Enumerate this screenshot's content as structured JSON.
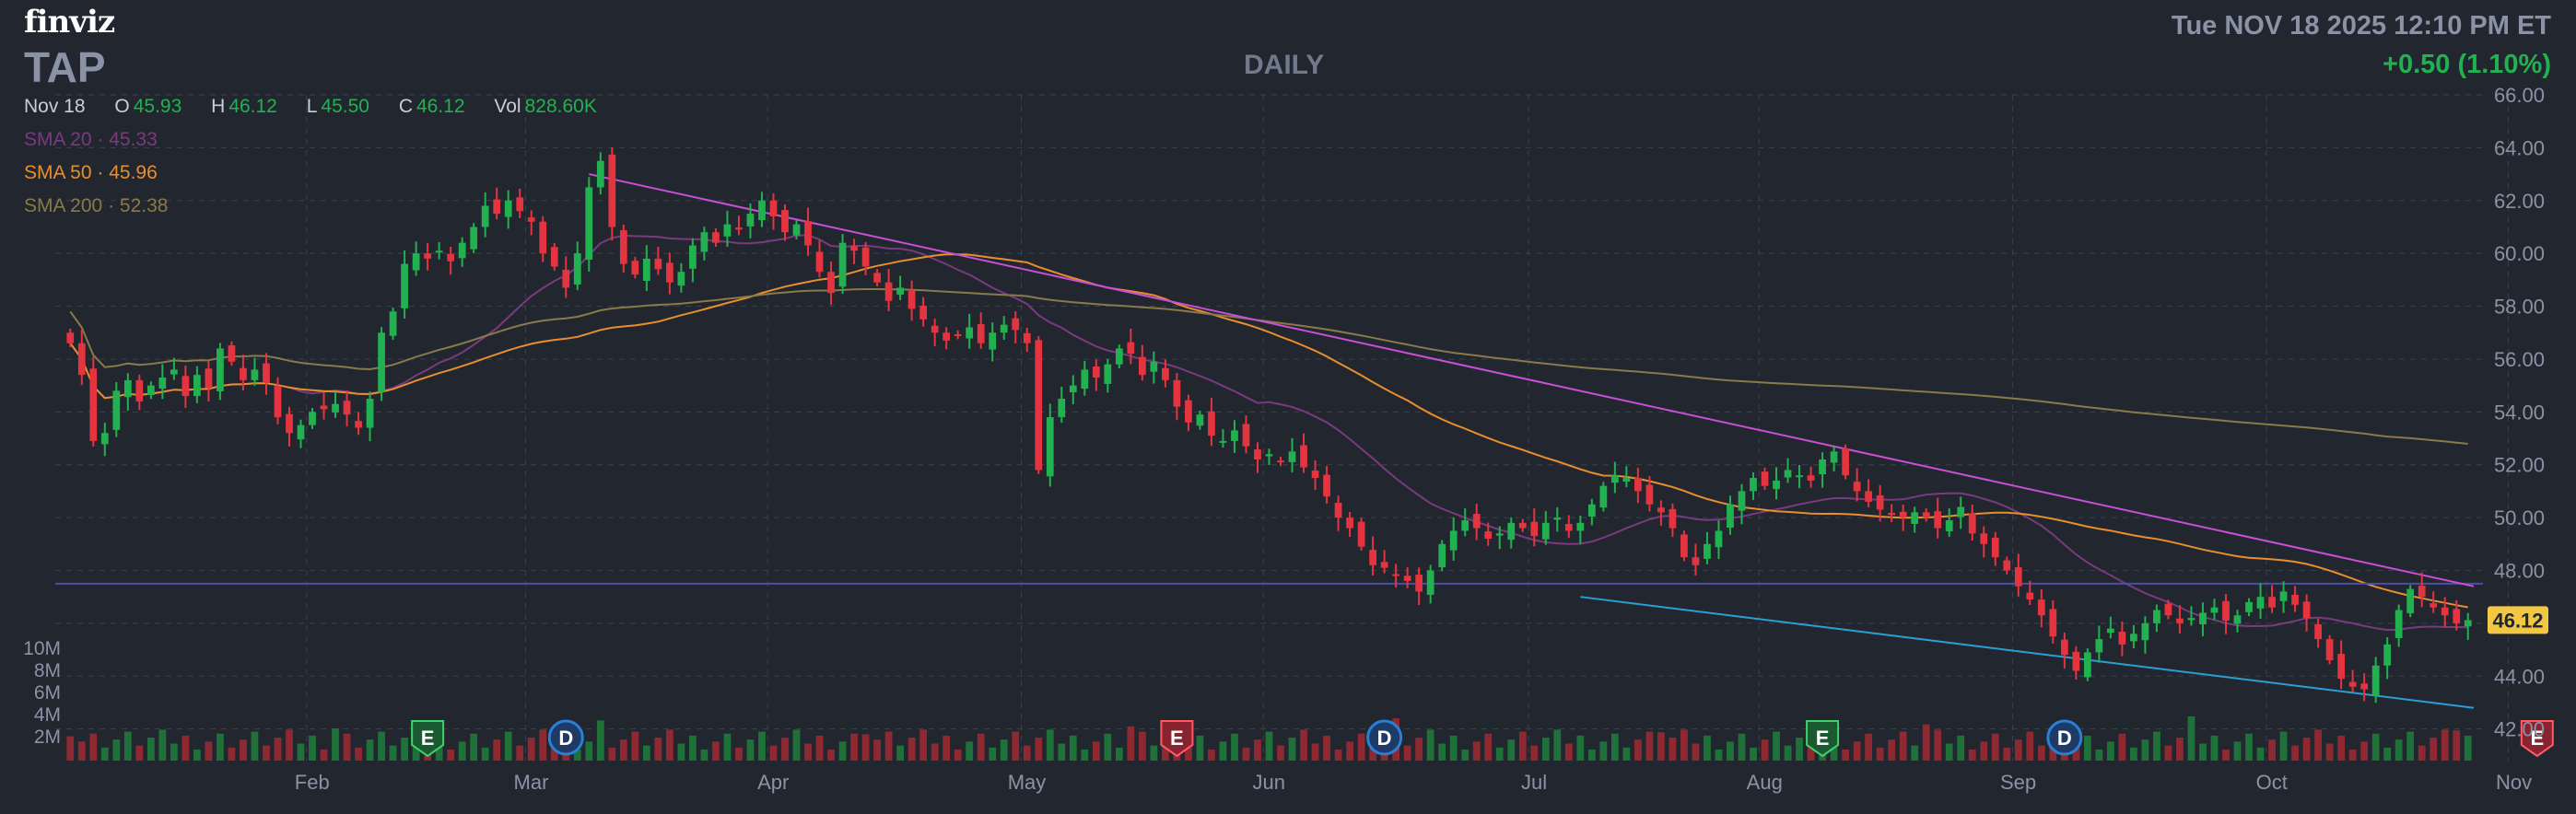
{
  "header": {
    "logo": "finviz",
    "ticker": "TAP",
    "timeframe": "DAILY",
    "datetime": "Tue NOV 18 2025 12:10 PM ET",
    "change": "+0.50 (1.10%)"
  },
  "ohlc": {
    "date": "Nov 18",
    "open_label": "O",
    "open": "45.93",
    "high_label": "H",
    "high": "46.12",
    "low_label": "L",
    "low": "45.50",
    "close_label": "C",
    "close": "46.12",
    "vol_label": "Vol",
    "volume": "828.60K"
  },
  "indicators": [
    {
      "label": "SMA 20",
      "value": "45.33",
      "color": "#7a3a7e"
    },
    {
      "label": "SMA 50",
      "value": "45.96",
      "color": "#e88e2e"
    },
    {
      "label": "SMA 200",
      "value": "52.38",
      "color": "#8a7a4a"
    }
  ],
  "colors": {
    "background": "#22262f",
    "up": "#22b150",
    "down": "#e3343f",
    "grid": "#3a404c",
    "axis_text": "#8a93a6",
    "trendline_upper": "#c94fd6",
    "trendline_lower": "#2a9fd6",
    "hline": "#4a4fa8",
    "price_tag": "#f2c744"
  },
  "chart_data": {
    "type": "candlestick",
    "ylim": [
      41.5,
      66
    ],
    "y_ticks": [
      "66.00",
      "64.00",
      "62.00",
      "60.00",
      "58.00",
      "56.00",
      "54.00",
      "52.00",
      "50.00",
      "48.00",
      "46.00",
      "44.00",
      "42.00"
    ],
    "x_months": [
      "Feb",
      "Mar",
      "Apr",
      "May",
      "Jun",
      "Jul",
      "Aug",
      "Sep",
      "Oct",
      "Nov"
    ],
    "volume_ticks": [
      "10M",
      "8M",
      "6M",
      "4M",
      "2M"
    ],
    "last_price_tag": "46.12",
    "horizontal_line": 47.5,
    "trendlines": [
      {
        "from": [
          "Mar 10",
          63.0
        ],
        "to": [
          "Nov 18",
          47.4
        ],
        "color": "#c94fd6"
      },
      {
        "from": [
          "Jun 27",
          47.0
        ],
        "to": [
          "Nov 18",
          42.8
        ],
        "color": "#2a9fd6"
      }
    ],
    "events": [
      {
        "label": "E",
        "date": "Feb 13",
        "color": "#22b150"
      },
      {
        "label": "D",
        "date": "Feb 28",
        "color": "#2a7fd6"
      },
      {
        "label": "E",
        "date": "May 6",
        "color": "#e3343f"
      },
      {
        "label": "D",
        "date": "Jun 6",
        "color": "#2a7fd6"
      },
      {
        "label": "E",
        "date": "Aug 5",
        "color": "#22b150"
      },
      {
        "label": "D",
        "date": "Sep 5",
        "color": "#2a7fd6"
      },
      {
        "label": "E",
        "date": "Nov 4",
        "color": "#e3343f"
      }
    ],
    "close_series": [
      56.6,
      55.4,
      52.9,
      53.2,
      54.8,
      55.2,
      54.4,
      55.0,
      55.3,
      55.6,
      54.6,
      55.4,
      54.9,
      56.4,
      55.9,
      55.2,
      55.6,
      55.1,
      53.8,
      53.2,
      53.5,
      54.0,
      54.1,
      54.3,
      53.9,
      53.4,
      54.5,
      57.0,
      57.8,
      59.6,
      60.0,
      59.8,
      60.1,
      59.7,
      60.4,
      61.0,
      61.8,
      61.5,
      62.0,
      61.6,
      61.2,
      60.0,
      59.5,
      58.7,
      60.0,
      62.5,
      63.5,
      61.0,
      59.6,
      59.2,
      59.8,
      59.4,
      58.9,
      59.3,
      60.3,
      60.8,
      60.4,
      61.1,
      60.9,
      61.5,
      62.0,
      61.4,
      60.8,
      61.1,
      60.3,
      59.3,
      58.5,
      60.4,
      60.1,
      59.5,
      58.9,
      58.2,
      58.7,
      57.9,
      57.5,
      57.0,
      56.7,
      56.9,
      57.2,
      56.6,
      57.0,
      57.3,
      57.1,
      56.6,
      51.8,
      53.8,
      54.5,
      55.0,
      55.6,
      55.3,
      55.8,
      56.4,
      56.2,
      55.4,
      55.9,
      55.2,
      54.2,
      53.6,
      53.9,
      53.1,
      52.9,
      53.3,
      52.7,
      52.2,
      52.4,
      52.1,
      52.5,
      51.9,
      51.5,
      50.8,
      50.0,
      49.6,
      48.9,
      48.2,
      48.1,
      47.8,
      47.6,
      47.2,
      48.0,
      49.0,
      49.5,
      49.9,
      49.6,
      49.2,
      49.4,
      49.8,
      49.6,
      49.3,
      49.8,
      50.0,
      49.5,
      49.8,
      50.5,
      51.2,
      51.6,
      51.5,
      51.0,
      50.5,
      50.2,
      49.6,
      48.5,
      48.2,
      49.0,
      49.5,
      50.5,
      51.0,
      51.5,
      51.2,
      51.4,
      51.8,
      51.6,
      51.4,
      52.2,
      52.5,
      51.6,
      51.0,
      50.6,
      50.3,
      50.1,
      50.0,
      50.2,
      50.0,
      49.6,
      49.9,
      50.4,
      49.4,
      49.0,
      48.5,
      48.0,
      47.4,
      46.9,
      46.3,
      45.5,
      44.8,
      44.2,
      44.9,
      45.4,
      45.8,
      45.2,
      45.6,
      46.0,
      46.5,
      46.3,
      46.0,
      46.2,
      46.4,
      46.6,
      46.1,
      46.3,
      46.8,
      47.0,
      46.6,
      47.2,
      46.7,
      46.2,
      45.4,
      44.6,
      43.9,
      43.6,
      43.5,
      44.4,
      45.2,
      46.5,
      47.3,
      47.0,
      46.6,
      46.3,
      46.0,
      46.12
    ]
  }
}
